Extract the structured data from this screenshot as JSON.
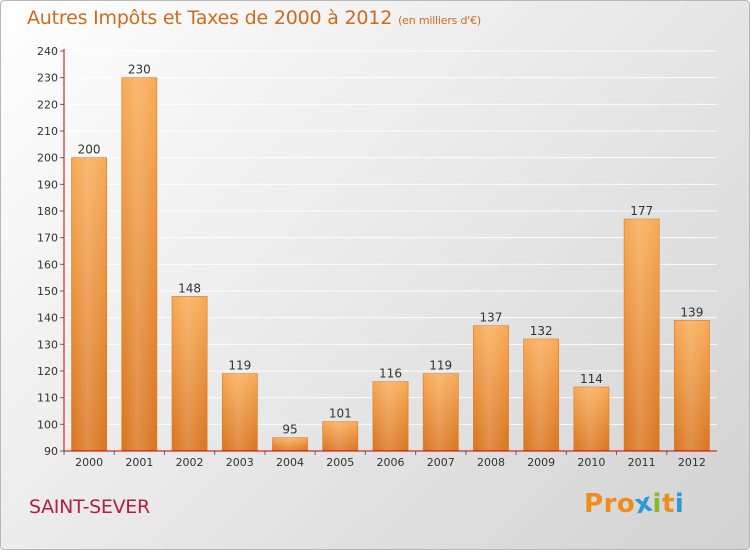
{
  "header": {
    "title": "Autres Impôts et Taxes de 2000 à 2012",
    "subtitle": "(en milliers d'€)"
  },
  "footer": {
    "city": "SAINT-SEVER",
    "logo": "Proxiti",
    "logo_letters": [
      "P",
      "r",
      "o",
      "x",
      "i",
      "t",
      "i"
    ]
  },
  "colors": {
    "title": "#d2691e",
    "city": "#b22040",
    "bar_light": "#f8aa55",
    "bar_dark": "#d9741e",
    "axis": "#cc0000",
    "logo_letters": [
      "#f08c1c",
      "#f08c1c",
      "#f08c1c",
      "#2a9ad8",
      "#89b82c",
      "#f08c1c",
      "#2a9ad8"
    ]
  },
  "chart_data": {
    "type": "bar",
    "title": "Autres Impôts et Taxes de 2000 à 2012",
    "categories": [
      "2000",
      "2001",
      "2002",
      "2003",
      "2004",
      "2005",
      "2006",
      "2007",
      "2008",
      "2009",
      "2010",
      "2011",
      "2012"
    ],
    "values": [
      200,
      230,
      148,
      119,
      95,
      101,
      116,
      119,
      137,
      132,
      114,
      177,
      139
    ],
    "ylim": [
      90,
      240
    ],
    "yticks": [
      90,
      100,
      110,
      120,
      130,
      140,
      150,
      160,
      170,
      180,
      190,
      200,
      210,
      220,
      230,
      240
    ],
    "grid": true,
    "xlabel": "",
    "ylabel": ""
  }
}
